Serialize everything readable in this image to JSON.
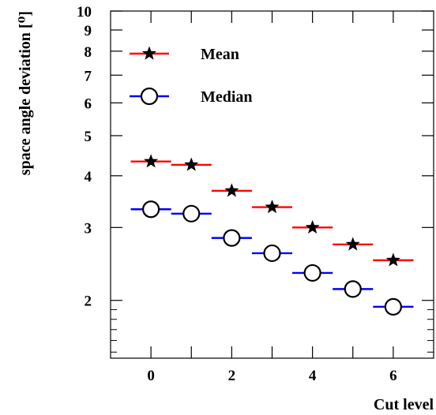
{
  "chart_data": {
    "type": "scatter",
    "title": "",
    "xlabel": "Cut level",
    "ylabel": "space angle deviation [⁰]",
    "xlim": [
      -1,
      7
    ],
    "ylim": [
      1.45,
      10
    ],
    "yscale": "log",
    "grid": false,
    "legend_position": "top-left",
    "x_ticks": [
      0,
      2,
      4,
      6
    ],
    "y_ticks": [
      2,
      3,
      4,
      5,
      6,
      7,
      8,
      9,
      10
    ],
    "categories": [
      0,
      1,
      2,
      3,
      4,
      5,
      6
    ],
    "bin_half_width": 0.5,
    "series": [
      {
        "name": "Mean",
        "marker": "star",
        "color": "#ff0000",
        "values": [
          4.33,
          4.25,
          3.68,
          3.36,
          3.0,
          2.73,
          2.5
        ]
      },
      {
        "name": "Median",
        "marker": "open-circle",
        "color": "#0000ff",
        "values": [
          3.32,
          3.24,
          2.83,
          2.6,
          2.33,
          2.13,
          1.93
        ]
      }
    ]
  }
}
